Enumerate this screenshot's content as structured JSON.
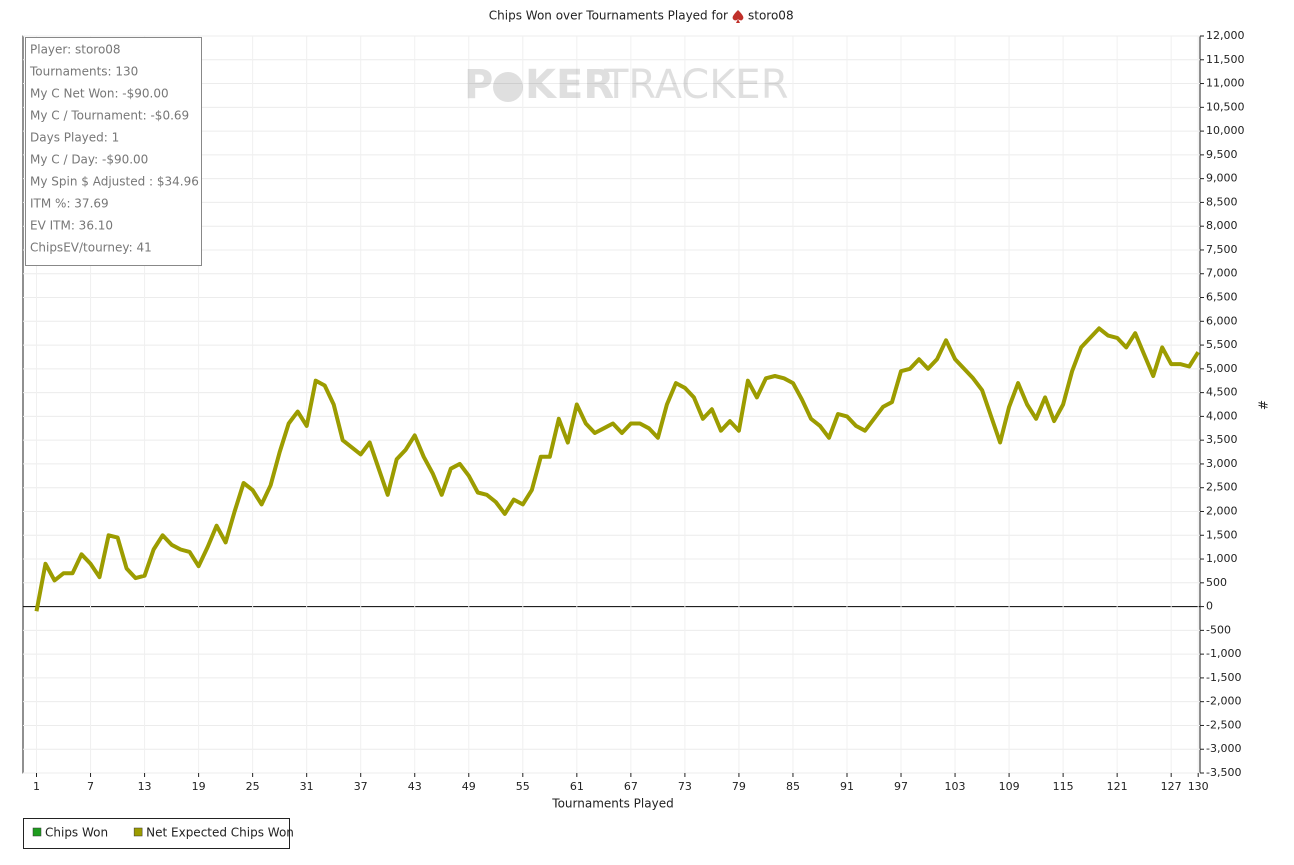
{
  "chart_data": {
    "type": "line",
    "title": "Chips Won over Tournaments Played for",
    "player": "storo08",
    "watermark": {
      "left": "P",
      "mid": "KER",
      "right": "TRACKER"
    },
    "xlabel": "Tournaments Played",
    "ylabel": "#",
    "info": [
      "Player: storo08",
      "Tournaments: 130",
      "My C Net Won: -$90.00",
      "My C / Tournament: -$0.69",
      "Days Played: 1",
      "My C / Day: -$90.00",
      "My Spin $ Adjusted : $34.96",
      "ITM %: 37.69",
      "EV ITM: 36.10",
      "ChipsEV/tourney: 41"
    ],
    "legend": [
      {
        "name": "Chips Won",
        "color": "#1e9c1e"
      },
      {
        "name": "Net Expected Chips Won",
        "color": "#9c9c00"
      }
    ],
    "x": [
      1,
      2,
      3,
      4,
      5,
      6,
      7,
      8,
      9,
      10,
      11,
      12,
      13,
      14,
      15,
      16,
      17,
      18,
      19,
      20,
      21,
      22,
      23,
      24,
      25,
      26,
      27,
      28,
      29,
      30,
      31,
      32,
      33,
      34,
      35,
      36,
      37,
      38,
      39,
      40,
      41,
      42,
      43,
      44,
      45,
      46,
      47,
      48,
      49,
      50,
      51,
      52,
      53,
      54,
      55,
      56,
      57,
      58,
      59,
      60,
      61,
      62,
      63,
      64,
      65,
      66,
      67,
      68,
      69,
      70,
      71,
      72,
      73,
      74,
      75,
      76,
      77,
      78,
      79,
      80,
      81,
      82,
      83,
      84,
      85,
      86,
      87,
      88,
      89,
      90,
      91,
      92,
      93,
      94,
      95,
      96,
      97,
      98,
      99,
      100,
      101,
      102,
      103,
      104,
      105,
      106,
      107,
      108,
      109,
      110,
      111,
      112,
      113,
      114,
      115,
      116,
      117,
      118,
      119,
      120,
      121,
      122,
      123,
      124,
      125,
      126,
      127,
      128,
      129,
      130
    ],
    "series": [
      {
        "name": "Net Expected Chips Won",
        "color": "#9c9c00",
        "values": [
          -100,
          900,
          550,
          700,
          700,
          1100,
          900,
          620,
          1500,
          1450,
          800,
          600,
          650,
          1200,
          1500,
          1300,
          1200,
          1150,
          850,
          1250,
          1700,
          1350,
          2000,
          2600,
          2450,
          2150,
          2550,
          3250,
          3850,
          4100,
          3800,
          4750,
          4650,
          4250,
          3500,
          3350,
          3200,
          3450,
          2900,
          2350,
          3100,
          3300,
          3600,
          3150,
          2800,
          2350,
          2900,
          3000,
          2750,
          2400,
          2350,
          2200,
          1950,
          2250,
          2150,
          2450,
          3150,
          3150,
          3950,
          3450,
          4250,
          3850,
          3650,
          3750,
          3850,
          3650,
          3850,
          3850,
          3750,
          3550,
          4250,
          4700,
          4600,
          4400,
          3950,
          4150,
          3700,
          3900,
          3700,
          4750,
          4400,
          4800,
          4850,
          4800,
          4700,
          4350,
          3950,
          3800,
          3550,
          4050,
          4000,
          3800,
          3700,
          3950,
          4200,
          4300,
          4950,
          5000,
          5200,
          5000,
          5200,
          5600,
          5200,
          5000,
          4800,
          4550,
          4000,
          3450,
          4200,
          4700,
          4250,
          3950,
          4400,
          3900,
          4250,
          4950,
          5450,
          5650,
          5850,
          5700,
          5650,
          5450,
          5750,
          5300,
          4850,
          5450,
          5100,
          5100,
          5050,
          5350
        ]
      }
    ],
    "xlim": [
      -0.5,
      130.2
    ],
    "xticks": [
      1,
      7,
      13,
      19,
      25,
      31,
      37,
      43,
      49,
      55,
      61,
      67,
      73,
      79,
      85,
      91,
      97,
      103,
      109,
      115,
      121,
      127,
      130
    ],
    "ylim": [
      -3500,
      12000
    ],
    "yticks": [
      {
        "value": -3500,
        "label": "-3,500"
      },
      {
        "value": -3000,
        "label": "-3,000"
      },
      {
        "value": -2500,
        "label": "-2,500"
      },
      {
        "value": -2000,
        "label": "-2,000"
      },
      {
        "value": -1500,
        "label": "-1,500"
      },
      {
        "value": -1000,
        "label": "-1,000"
      },
      -500,
      0,
      500,
      {
        "value": 1000,
        "label": "1,000"
      },
      {
        "value": 1500,
        "label": "1,500"
      },
      {
        "value": 2000,
        "label": "2,000"
      },
      {
        "value": 2500,
        "label": "2,500"
      },
      {
        "value": 3000,
        "label": "3,000"
      },
      {
        "value": 3500,
        "label": "3,500"
      },
      {
        "value": 4000,
        "label": "4,000"
      },
      {
        "value": 4500,
        "label": "4,500"
      },
      {
        "value": 5000,
        "label": "5,000"
      },
      {
        "value": 5500,
        "label": "5,500"
      },
      {
        "value": 6000,
        "label": "6,000"
      },
      {
        "value": 6500,
        "label": "6,500"
      },
      {
        "value": 7000,
        "label": "7,000"
      },
      {
        "value": 7500,
        "label": "7,500"
      },
      {
        "value": 8000,
        "label": "8,000"
      },
      {
        "value": 8500,
        "label": "8,500"
      },
      {
        "value": 9000,
        "label": "9,000"
      },
      {
        "value": 9500,
        "label": "9,500"
      },
      {
        "value": 10000,
        "label": "10,000"
      },
      {
        "value": 10500,
        "label": "10,500"
      },
      {
        "value": 11000,
        "label": "11,000"
      },
      {
        "value": 11500,
        "label": "11,500"
      },
      {
        "value": 12000,
        "label": "12,000"
      }
    ],
    "grid": true
  }
}
